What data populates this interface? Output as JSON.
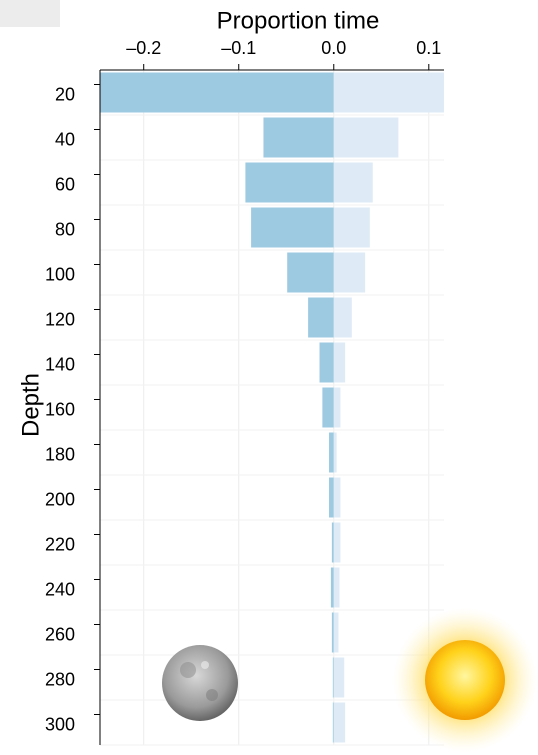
{
  "chart_data": {
    "type": "bar",
    "orientation": "horizontal",
    "x_label": "Proportion time",
    "y_label": "Depth",
    "categories": [
      "20",
      "40",
      "60",
      "80",
      "100",
      "120",
      "140",
      "160",
      "180",
      "200",
      "220",
      "240",
      "260",
      "280",
      "300"
    ],
    "series": [
      {
        "color": "#9ecae1",
        "values": [
          -0.246,
          -0.074,
          -0.093,
          -0.087,
          -0.049,
          -0.027,
          -0.015,
          -0.012,
          -0.005,
          -0.005,
          -0.002,
          -0.003,
          -0.002,
          -0.001,
          -0.001
        ]
      },
      {
        "color": "#deebf7",
        "values": [
          0.116,
          0.068,
          0.041,
          0.038,
          0.033,
          0.019,
          0.012,
          0.007,
          0.003,
          0.007,
          0.007,
          0.006,
          0.005,
          0.011,
          0.012
        ]
      }
    ],
    "xlim": [
      -0.246,
      0.116
    ],
    "xticks": [
      {
        "value": -0.2,
        "label": "–0.2"
      },
      {
        "value": -0.1,
        "label": "–0.1"
      },
      {
        "value": 0,
        "label": "0.0"
      },
      0.1
    ],
    "grid": true
  }
}
